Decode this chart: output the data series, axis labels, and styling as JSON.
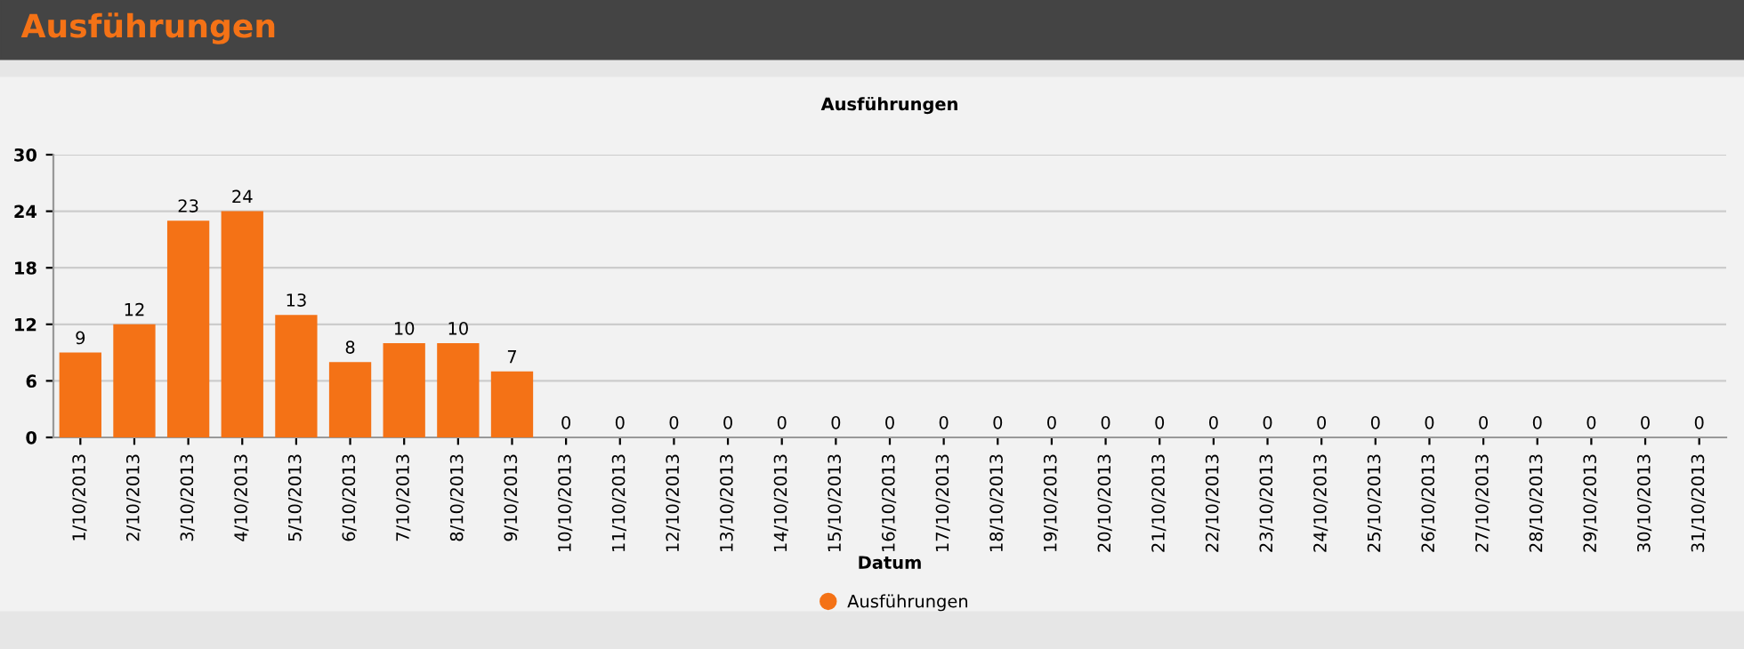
{
  "chart_data": {
    "type": "bar",
    "title": "Ausführungen",
    "subtitle": "Ausführungen",
    "xlabel": "Datum",
    "categories": [
      "1/10/2013",
      "2/10/2013",
      "3/10/2013",
      "4/10/2013",
      "5/10/2013",
      "6/10/2013",
      "7/10/2013",
      "8/10/2013",
      "9/10/2013",
      "10/10/2013",
      "11/10/2013",
      "12/10/2013",
      "13/10/2013",
      "14/10/2013",
      "15/10/2013",
      "16/10/2013",
      "17/10/2013",
      "18/10/2013",
      "19/10/2013",
      "20/10/2013",
      "21/10/2013",
      "22/10/2013",
      "23/10/2013",
      "24/10/2013",
      "25/10/2013",
      "26/10/2013",
      "27/10/2013",
      "28/10/2013",
      "29/10/2013",
      "30/10/2013",
      "31/10/2013"
    ],
    "series": [
      {
        "name": "Ausführungen",
        "color": "#f47216",
        "values": [
          9,
          12,
          23,
          24,
          13,
          8,
          10,
          10,
          7,
          0,
          0,
          0,
          0,
          0,
          0,
          0,
          0,
          0,
          0,
          0,
          0,
          0,
          0,
          0,
          0,
          0,
          0,
          0,
          0,
          0,
          0
        ]
      }
    ],
    "ylim": [
      0,
      30
    ],
    "yticks": [
      0,
      6,
      12,
      18,
      24,
      30
    ],
    "grid": "y",
    "data_labels": true,
    "legend": "bottom"
  }
}
